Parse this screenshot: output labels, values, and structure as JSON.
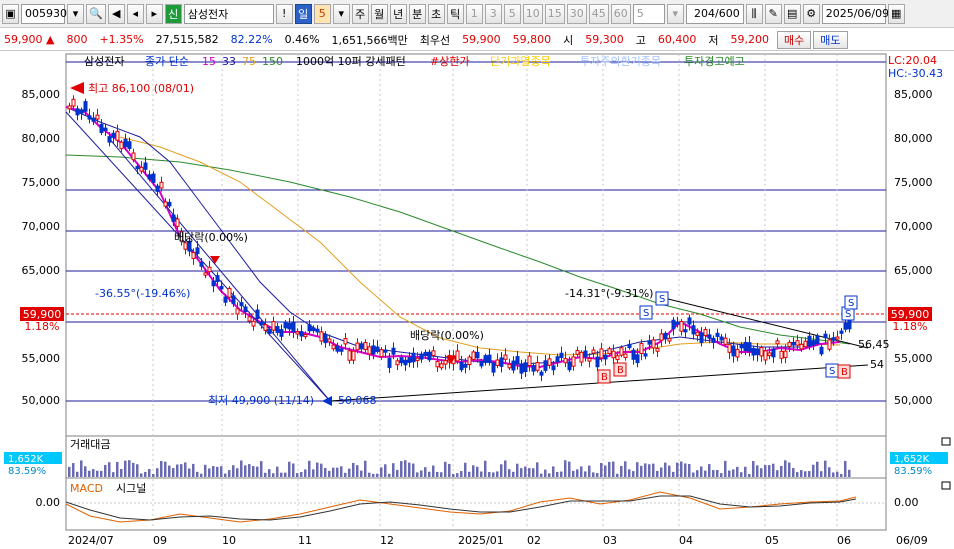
{
  "toolbar": {
    "code": "005930",
    "stock_tag": "신",
    "stock_name": "삼성전자",
    "period_mode": "일",
    "period_value": "5",
    "periods": [
      "주",
      "월",
      "년",
      "분",
      "초",
      "틱"
    ],
    "minute_values": [
      "1",
      "3",
      "5",
      "10",
      "15",
      "30",
      "45",
      "60"
    ],
    "minute_select": "5",
    "count": "204",
    "count_max": "/600",
    "date": "2025/06/09",
    "alert_label": "!"
  },
  "quote": {
    "price": "59,900",
    "arrow": "▲",
    "change": "800",
    "change_pct": "+1.35%",
    "volume": "27,515,582",
    "volume_ratio": "82.22%",
    "turnover": "0.46%",
    "amount": "1,651,566백만",
    "best_label": "최우선",
    "ask": "59,900",
    "bid": "59,800",
    "open_label": "시",
    "open": "59,300",
    "high_label": "고",
    "high": "60,400",
    "low_label": "저",
    "low": "59,200",
    "buy_button": "매수",
    "sell_button": "매도"
  },
  "legend": {
    "name": "삼성전자",
    "ma_label": "종가 단순",
    "ma_periods": [
      "15",
      "33",
      "75",
      "150"
    ],
    "signal1": "1000억 10퍼 강세패턴",
    "signal2": "#상한가",
    "signal3": "단기과열종목",
    "signal4": "투자주의환기종목",
    "signal5": "투자경고예고"
  },
  "corner": {
    "lc": "LC:20.04",
    "hc": "HC:-30.43"
  },
  "annotations": {
    "high": "최고 86,100 (08/01)",
    "low": "최저 49,900 (11/14)",
    "dividend1": "배당락(0.00%)",
    "dividend2": "배당락(0.00%)",
    "trend_down": "-36.55°(-19.46%)",
    "trend_up": "-14.31°(-9.31%)",
    "line_56": "56,45",
    "line_54": "54",
    "line_50": "50,068",
    "current_price": "59,900",
    "current_pct": "1.18%"
  },
  "price_axis": [
    "85,000",
    "80,000",
    "75,000",
    "70,000",
    "65,000",
    "60,000",
    "55,000",
    "50,000"
  ],
  "volume_panel": {
    "title": "거래대금",
    "value": "1,652K",
    "pct": "83.59%"
  },
  "macd_panel": {
    "title1": "MACD",
    "title2": "시그널",
    "zero": "0.00"
  },
  "x_axis": [
    "2024/07",
    "09",
    "10",
    "11",
    "12",
    "2025/01",
    "02",
    "03",
    "04",
    "05",
    "06",
    "06/09"
  ],
  "colors": {
    "up": "#e00000",
    "down": "#0033cc",
    "ma15": "#d400c8",
    "ma33": "#1a1a9c",
    "ma75": "#e0a020",
    "ma150": "#2a8a2a"
  },
  "chart_data": {
    "type": "candlestick",
    "x_range": [
      "2024/07",
      "2025/06/09"
    ],
    "y_range": [
      49000,
      87000
    ],
    "series": [
      {
        "name": "종가 단순 15",
        "values": [
          84000,
          82000,
          78000,
          75000,
          72000,
          69000,
          66000,
          63000,
          61000,
          59500,
          58000,
          57000,
          56500,
          56000,
          55500,
          55200,
          55000,
          54800,
          54600,
          54500,
          54500,
          55000,
          55500,
          56000,
          55500,
          55000,
          55500,
          57000,
          58500,
          57000,
          56000,
          55500,
          55500,
          56000,
          56500,
          57000
        ]
      },
      {
        "name": "종가 단순 150",
        "values": [
          78500,
          78000,
          77500,
          77000,
          76500,
          75500,
          74500,
          73000,
          71500,
          70000,
          68500,
          67000,
          65500,
          64000,
          62500,
          61000,
          59500,
          58200,
          57500,
          57000
        ]
      }
    ],
    "volume_value": "1,652K"
  }
}
